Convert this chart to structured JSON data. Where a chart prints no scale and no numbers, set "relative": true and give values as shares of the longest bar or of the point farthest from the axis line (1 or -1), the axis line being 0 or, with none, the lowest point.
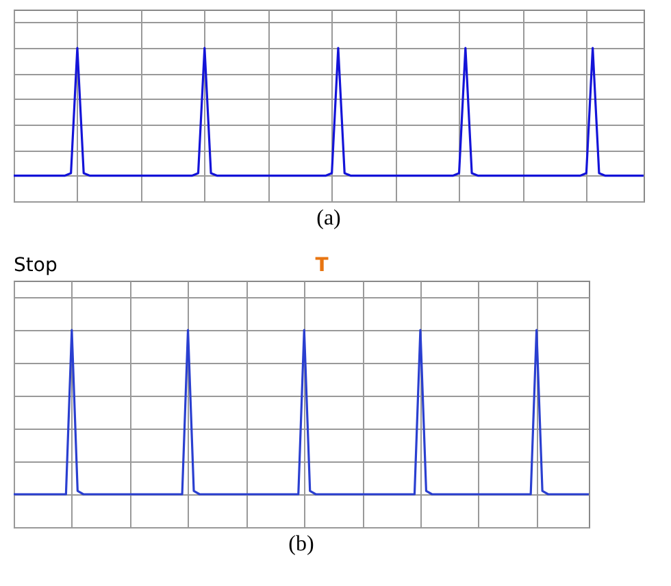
{
  "chart_data": [
    {
      "type": "line",
      "title": "(a)",
      "relative": true,
      "grid": true,
      "marker": "none",
      "line_style": "solid",
      "categories": [
        null,
        null,
        null,
        null,
        null,
        null,
        null,
        null,
        null,
        null,
        null,
        null,
        null,
        null,
        null,
        null,
        null,
        null,
        null,
        null,
        null,
        null,
        null,
        null,
        null,
        null,
        null,
        null,
        null,
        null,
        null,
        null,
        null,
        null,
        null,
        null,
        null,
        null,
        null,
        null,
        null,
        null,
        null,
        null,
        null,
        null,
        null,
        null,
        null,
        null,
        null,
        null,
        null,
        null,
        null,
        null,
        null,
        null,
        null,
        null,
        null,
        null,
        null,
        null,
        null,
        null,
        null,
        null,
        null,
        null,
        null,
        null,
        null,
        null,
        null,
        null,
        null,
        null,
        null,
        null,
        null,
        null,
        null,
        null,
        null,
        null,
        null,
        null,
        null,
        null,
        null,
        null,
        null,
        null,
        null,
        null,
        null,
        null,
        null,
        null
      ],
      "series": [
        {
          "color": "#1414d8",
          "values": [
            0,
            0,
            0,
            0,
            0,
            0,
            0,
            0,
            0,
            0.02,
            1,
            0.02,
            0,
            0,
            0,
            0,
            0,
            0,
            0,
            0,
            0,
            0,
            0,
            0,
            0,
            0,
            0,
            0,
            0,
            0.02,
            1,
            0.02,
            0,
            0,
            0,
            0,
            0,
            0,
            0,
            0,
            0,
            0,
            0,
            0,
            0,
            0,
            0,
            0,
            0,
            0,
            0.02,
            1,
            0.02,
            0,
            0,
            0,
            0,
            0,
            0,
            0,
            0,
            0,
            0,
            0,
            0,
            0,
            0,
            0,
            0,
            0,
            0.02,
            1,
            0.02,
            0,
            0,
            0,
            0,
            0,
            0,
            0,
            0,
            0,
            0,
            0,
            0,
            0,
            0,
            0,
            0,
            0,
            0.02,
            1,
            0.02,
            0,
            0,
            0,
            0,
            0,
            0,
            0
          ]
        }
      ]
    },
    {
      "type": "line",
      "title": "(b)",
      "relative": true,
      "grid": true,
      "marker": "none",
      "line_style": "solid",
      "annotations": [
        "Stop",
        "T"
      ],
      "categories": [
        null,
        null,
        null,
        null,
        null,
        null,
        null,
        null,
        null,
        null,
        null,
        null,
        null,
        null,
        null,
        null,
        null,
        null,
        null,
        null,
        null,
        null,
        null,
        null,
        null,
        null,
        null,
        null,
        null,
        null,
        null,
        null,
        null,
        null,
        null,
        null,
        null,
        null,
        null,
        null,
        null,
        null,
        null,
        null,
        null,
        null,
        null,
        null,
        null,
        null,
        null,
        null,
        null,
        null,
        null,
        null,
        null,
        null,
        null,
        null,
        null,
        null,
        null,
        null,
        null,
        null,
        null,
        null,
        null,
        null,
        null,
        null,
        null,
        null,
        null,
        null,
        null,
        null,
        null,
        null,
        null,
        null,
        null,
        null,
        null,
        null,
        null,
        null,
        null,
        null,
        null,
        null,
        null,
        null,
        null,
        null,
        null,
        null,
        null,
        null
      ],
      "series": [
        {
          "color": "#2a3fd0",
          "values": [
            0,
            0,
            0,
            0,
            0,
            0,
            0,
            0,
            0,
            0,
            1,
            0.02,
            0,
            0,
            0,
            0,
            0,
            0,
            0,
            0,
            0,
            0,
            0,
            0,
            0,
            0,
            0,
            0,
            0,
            0,
            1,
            0.02,
            0,
            0,
            0,
            0,
            0,
            0,
            0,
            0,
            0,
            0,
            0,
            0,
            0,
            0,
            0,
            0,
            0,
            0,
            1,
            0.02,
            0,
            0,
            0,
            0,
            0,
            0,
            0,
            0,
            0,
            0,
            0,
            0,
            0,
            0,
            0,
            0,
            0,
            0,
            1,
            0.02,
            0,
            0,
            0,
            0,
            0,
            0,
            0,
            0,
            0,
            0,
            0,
            0,
            0,
            0,
            0,
            0,
            0,
            0,
            1,
            0.02,
            0,
            0,
            0,
            0,
            0,
            0,
            0,
            0
          ]
        }
      ]
    }
  ]
}
